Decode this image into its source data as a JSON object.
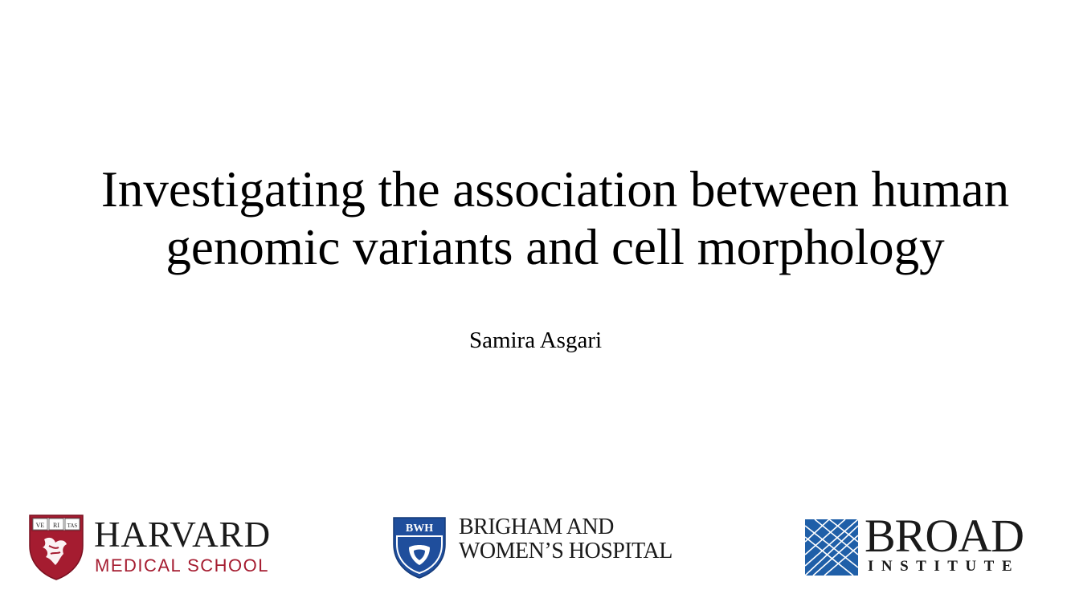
{
  "slide": {
    "title_line1": "Investigating the association between human",
    "title_line2": "genomic variants and cell morphology",
    "author": "Samira Asgari"
  },
  "logos": {
    "harvard": {
      "name": "HARVARD",
      "sub": "MEDICAL SCHOOL",
      "shield_text": [
        "VE",
        "RI",
        "TAS"
      ],
      "color": "#a51c30"
    },
    "bwh": {
      "shield_text": "BWH",
      "line1": "BRIGHAM AND",
      "line2": "WOMEN’S HOSPITAL",
      "color": "#1f4e9c"
    },
    "broad": {
      "name": "BROAD",
      "sub": "INSTITUTE",
      "color": "#1f5fa8"
    }
  }
}
